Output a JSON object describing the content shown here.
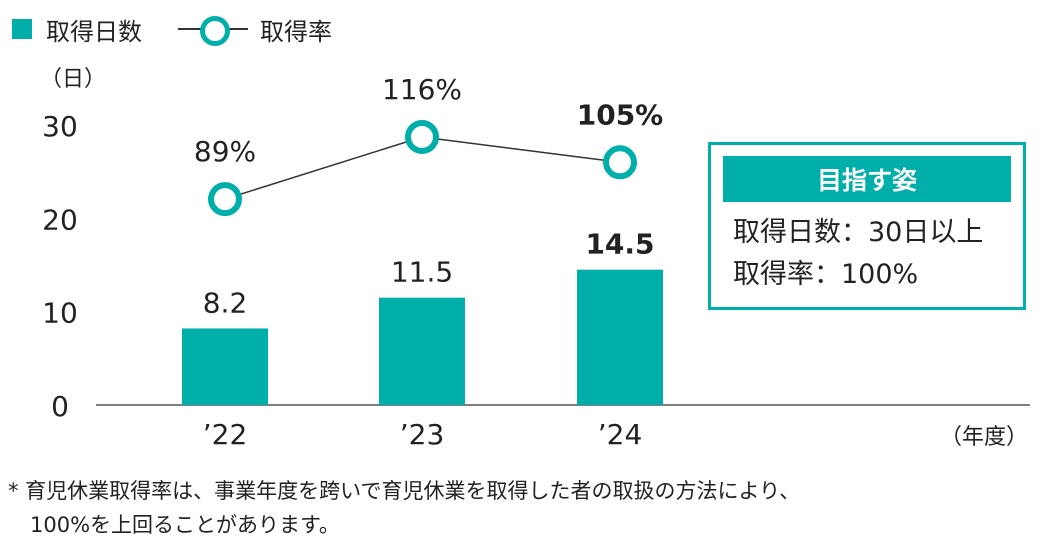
{
  "chart_data": {
    "type": "bar",
    "categories": [
      "’22",
      "’23",
      "’24"
    ],
    "series": [
      {
        "name": "取得日数",
        "type": "bar",
        "values": [
          8.2,
          11.5,
          14.5
        ],
        "labels": [
          "8.2",
          "11.5",
          "14.5"
        ],
        "color": "#00AEAA"
      },
      {
        "name": "取得率",
        "type": "line",
        "values": [
          89,
          116,
          105
        ],
        "labels": [
          "89%",
          "116%",
          "105%"
        ],
        "color": "#00AEAA"
      }
    ],
    "y_unit": "（日）",
    "x_unit": "（年度）",
    "y_ticks": [
      "0",
      "10",
      "20",
      "30"
    ],
    "ylim": [
      0,
      30
    ],
    "grid": false,
    "legend_position": "top-left"
  },
  "legend": {
    "bar_label": "取得日数",
    "line_label": "取得率"
  },
  "goal": {
    "title": "目指す姿",
    "line1": "取得日数：30日以上",
    "line2": "取得率：100%"
  },
  "footnote": {
    "line1": "* 育児休業取得率は、事業年度を跨いで育児休業を取得した者の取扱の方法により、",
    "line2": "100%を上回ることがあります。"
  },
  "colors": {
    "accent": "#00AEAA",
    "text": "#222222"
  }
}
